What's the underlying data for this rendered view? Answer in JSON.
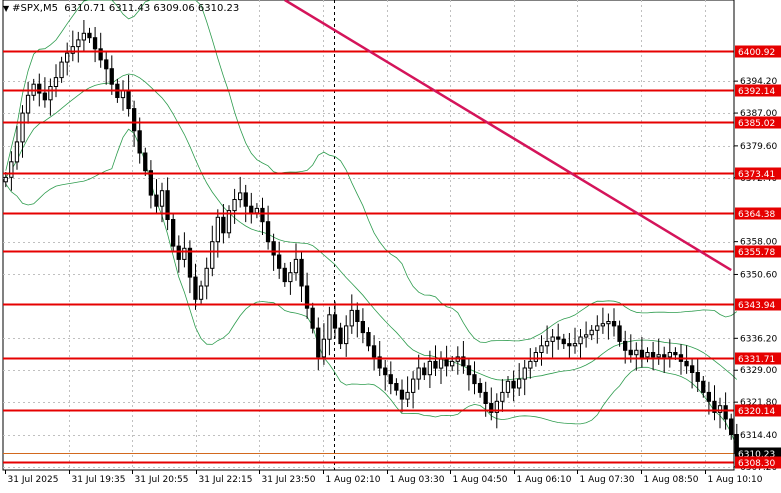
{
  "header": {
    "menu_icon": "triangle-down-icon",
    "symbol_timeframe": "#SPX,M5",
    "ohlc": "6310.71 6311.43 6309.06 6310.23"
  },
  "colors": {
    "background": "#ffffff",
    "candle": "#000000",
    "grid": "#c0c0c0",
    "level_line": "#e60000",
    "trendline": "#d4145a",
    "bollinger": "#2e9c4e",
    "price_tag_bg": "#e60000",
    "current_price_line": "#d2691e"
  },
  "chart_data": {
    "type": "candlestick",
    "symbol": "#SPX",
    "timeframe": "M5",
    "ylim": [
      6306.5,
      6412.5
    ],
    "xlim": [
      0,
      131
    ],
    "y_ticks": [
      6400.92,
      6394.2,
      6392.14,
      6387.0,
      6385.02,
      6379.6,
      6373.41,
      6372.4,
      6364.38,
      6358.0,
      6355.78,
      6350.6,
      6343.94,
      6336.2,
      6331.71,
      6329.0,
      6321.8,
      6320.14,
      6314.4,
      6310.23,
      6308.3,
      6307.2
    ],
    "x_tick_labels": [
      "31 Jul 2025",
      "31 Jul 19:35",
      "31 Jul 20:55",
      "31 Jul 22:15",
      "31 Jul 23:50",
      "1 Aug 02:10",
      "1 Aug 03:30",
      "1 Aug 04:50",
      "1 Aug 06:10",
      "1 Aug 07:30",
      "1 Aug 08:50",
      "1 Aug 10:10"
    ],
    "x_tick_index": [
      0,
      16,
      32,
      48,
      64,
      80,
      96,
      112,
      128,
      144,
      160,
      176
    ],
    "x_tick_scale": 0.741,
    "levels": [
      6400.92,
      6392.14,
      6385.02,
      6373.41,
      6364.38,
      6355.78,
      6343.94,
      6331.71,
      6320.14,
      6308.3
    ],
    "level_labels": [
      "6400.92",
      "6392.14",
      "6385.02",
      "6373.41",
      "6364.38",
      "6355.78",
      "6343.94",
      "6331.71",
      "6320.14",
      "6308.30"
    ],
    "current_price": 6310.23,
    "current_price_label": "6310.23",
    "trendline": {
      "from": [
        50,
        6412.5
      ],
      "to": [
        130,
        6351.6
      ]
    },
    "vertical_marker_index": 64,
    "closes": [
      6372.5,
      6376.0,
      6380.5,
      6387.0,
      6391.0,
      6393.5,
      6391.5,
      6390.0,
      6393.0,
      6395.0,
      6398.5,
      6400.5,
      6402.0,
      6403.5,
      6405.0,
      6404.0,
      6401.5,
      6399.0,
      6397.0,
      6393.5,
      6390.5,
      6392.0,
      6388.0,
      6383.0,
      6378.0,
      6374.0,
      6368.5,
      6366.0,
      6369.5,
      6363.0,
      6357.0,
      6354.0,
      6356.5,
      6350.0,
      6345.0,
      6348.0,
      6352.0,
      6358.0,
      6363.5,
      6360.0,
      6365.0,
      6367.5,
      6369.0,
      6366.0,
      6364.5,
      6365.5,
      6362.5,
      6358.0,
      6355.0,
      6352.0,
      6349.0,
      6351.0,
      6354.0,
      6348.0,
      6343.0,
      6338.5,
      6332.0,
      6336.0,
      6341.5,
      6338.5,
      6335.0,
      6339.0,
      6342.5,
      6340.0,
      6337.5,
      6334.5,
      6332.0,
      6329.5,
      6328.0,
      6326.0,
      6324.5,
      6322.5,
      6324.0,
      6327.0,
      6329.5,
      6328.0,
      6331.0,
      6329.5,
      6331.5,
      6330.0,
      6331.0,
      6332.0,
      6330.0,
      6328.0,
      6326.0,
      6324.0,
      6321.5,
      6319.5,
      6322.0,
      6324.0,
      6326.5,
      6325.0,
      6327.0,
      6329.5,
      6331.0,
      6333.0,
      6334.5,
      6335.5,
      6336.5,
      6336.0,
      6335.0,
      6334.5,
      6335.0,
      6336.5,
      6337.0,
      6338.0,
      6339.0,
      6339.5,
      6340.0,
      6339.0,
      6335.5,
      6333.5,
      6332.5,
      6333.5,
      6332.0,
      6333.0,
      6332.0,
      6332.5,
      6332.0,
      6333.0,
      6332.5,
      6331.0,
      6330.0,
      6328.5,
      6326.5,
      6324.0,
      6322.0,
      6319.5,
      6321.0,
      6318.0,
      6314.5,
      6310.2
    ]
  },
  "axis_labels": {
    "price": [
      "6394.20",
      "6387.00",
      "6379.60",
      "6372.40",
      "6358.00",
      "6350.60",
      "6336.20",
      "6329.00",
      "6321.80",
      "6314.40",
      "6307.20"
    ]
  }
}
